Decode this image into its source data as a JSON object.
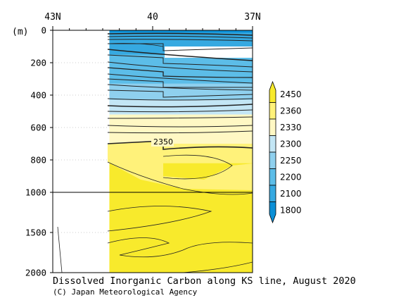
{
  "chart_data": {
    "type": "heatmap",
    "title": "Dissolved Inorganic Carbon along KS line, August 2020",
    "credit": "(C) Japan Meteorological Agency",
    "x_axis": {
      "ticks": [
        {
          "value": 43,
          "label": "43N"
        },
        {
          "value": 40,
          "label": "40"
        },
        {
          "value": 37,
          "label": "37N"
        }
      ],
      "range": [
        43,
        37
      ]
    },
    "y_axis": {
      "unit_label": "(m)",
      "ticks": [
        0,
        200,
        400,
        600,
        800,
        1000,
        1500,
        2000
      ],
      "range": [
        0,
        2000
      ],
      "scale": "piecewise: linear 0-1000, compressed 1000-2000"
    },
    "contour_label": "2350",
    "legend": {
      "levels": [
        "1800",
        "2100",
        "2200",
        "2250",
        "2300",
        "2330",
        "2360",
        "2450"
      ],
      "colors": [
        "#0a8fd6",
        "#36a9e1",
        "#5cbde8",
        "#8fd0ee",
        "#c3e6f5",
        "#fff8c4",
        "#fff27a",
        "#f8ea2c"
      ]
    },
    "data_region": {
      "lat_start": 41.3,
      "lat_end": 37
    },
    "grid": "dotted at depth ticks"
  }
}
